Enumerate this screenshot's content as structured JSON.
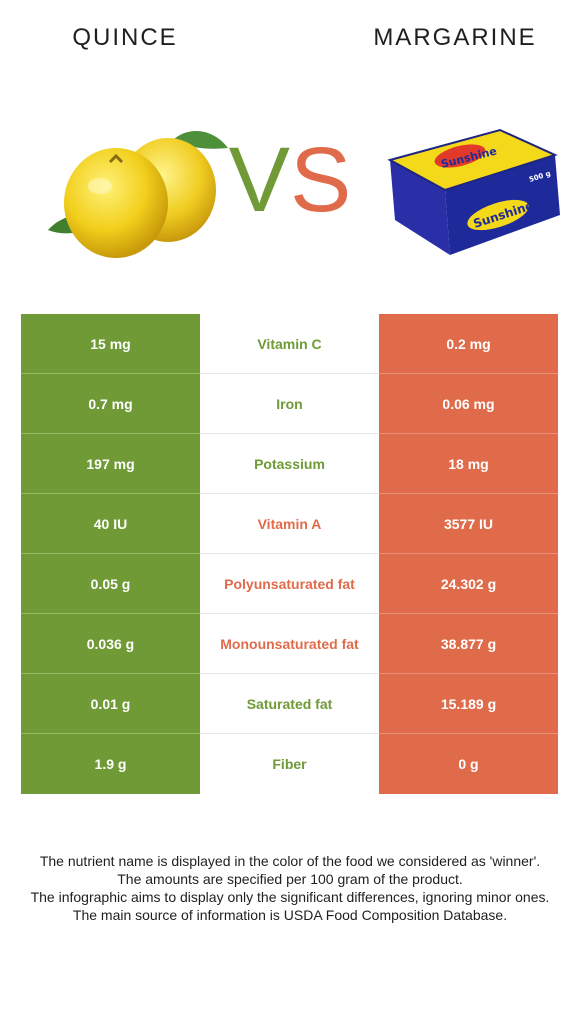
{
  "header": {
    "left_food": "QUINCE",
    "right_food": "MARGARINE",
    "vs_v": "V",
    "vs_s": "S"
  },
  "colors": {
    "left_winner": "#6f9a36",
    "right_winner": "#e06b4b"
  },
  "rows": [
    {
      "nutrient": "Vitamin C",
      "left": "15 mg",
      "right": "0.2 mg",
      "winner": "left"
    },
    {
      "nutrient": "Iron",
      "left": "0.7 mg",
      "right": "0.06 mg",
      "winner": "left"
    },
    {
      "nutrient": "Potassium",
      "left": "197 mg",
      "right": "18 mg",
      "winner": "left"
    },
    {
      "nutrient": "Vitamin A",
      "left": "40 IU",
      "right": "3577 IU",
      "winner": "right"
    },
    {
      "nutrient": "Polyunsaturated fat",
      "left": "0.05 g",
      "right": "24.302 g",
      "winner": "right"
    },
    {
      "nutrient": "Monounsaturated fat",
      "left": "0.036 g",
      "right": "38.877 g",
      "winner": "right"
    },
    {
      "nutrient": "Saturated fat",
      "left": "0.01 g",
      "right": "15.189 g",
      "winner": "left"
    },
    {
      "nutrient": "Fiber",
      "left": "1.9 g",
      "right": "0 g",
      "winner": "left"
    }
  ],
  "notes": [
    "The nutrient name is displayed in the color of the food we considered as 'winner'.",
    "The amounts are specified per 100 gram of the product.",
    "The infographic aims to display only the significant differences, ignoring minor ones.",
    "The main source of information is USDA Food Composition Database."
  ],
  "images": {
    "left": "quince-fruit-image",
    "right": "margarine-package-image",
    "margarine_brand": "Sunshine",
    "margarine_weight": "500 g"
  }
}
